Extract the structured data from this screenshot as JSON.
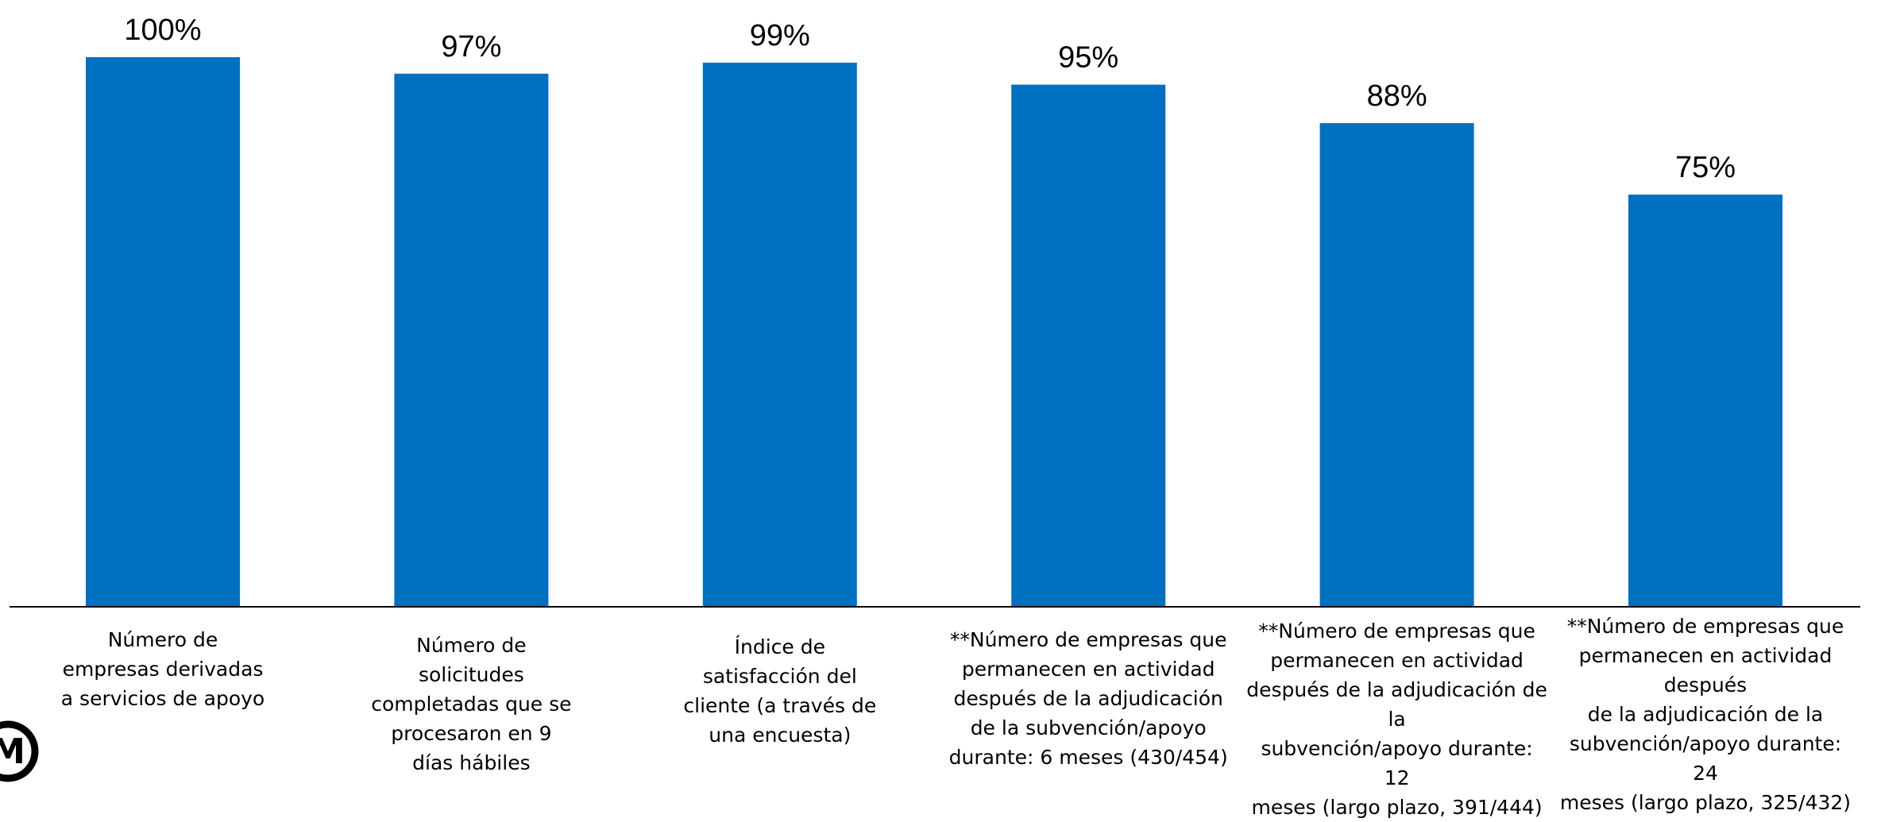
{
  "colors": {
    "bar": "#0070C0",
    "axis": "#000000",
    "logo": "#000000"
  },
  "logo": {
    "icon": "seal-logo-icon",
    "text": "M"
  },
  "chart_data": {
    "type": "bar",
    "title": "",
    "xlabel": "",
    "ylabel": "",
    "ylim": [
      0,
      100
    ],
    "grid": false,
    "legend": "none",
    "categories": [
      "Número de\nempresas derivadas\na servicios de apoyo",
      "Número de\nsolicitudes\ncompletadas que se\nprocesaron en 9\ndías hábiles",
      "Índice de\nsatisfacción del\ncliente (a través de\nuna encuesta)",
      "**Número de empresas que\npermanecen en actividad\ndespués de la adjudicación\nde la subvención/apoyo\ndurante: 6 meses (430/454)",
      "**Número de empresas que\npermanecen en actividad\ndespués de la adjudicación de la\nsubvención/apoyo durante: 12\nmeses (largo plazo, 391/444)",
      "**Número de empresas que\npermanecen en actividad después\nde la adjudicación de la\nsubvención/apoyo durante: 24\nmeses (largo plazo, 325/432)"
    ],
    "values": [
      100,
      97,
      99,
      95,
      88,
      75
    ],
    "data_labels": [
      "100%",
      "97%",
      "99%",
      "95%",
      "88%",
      "75%"
    ]
  }
}
